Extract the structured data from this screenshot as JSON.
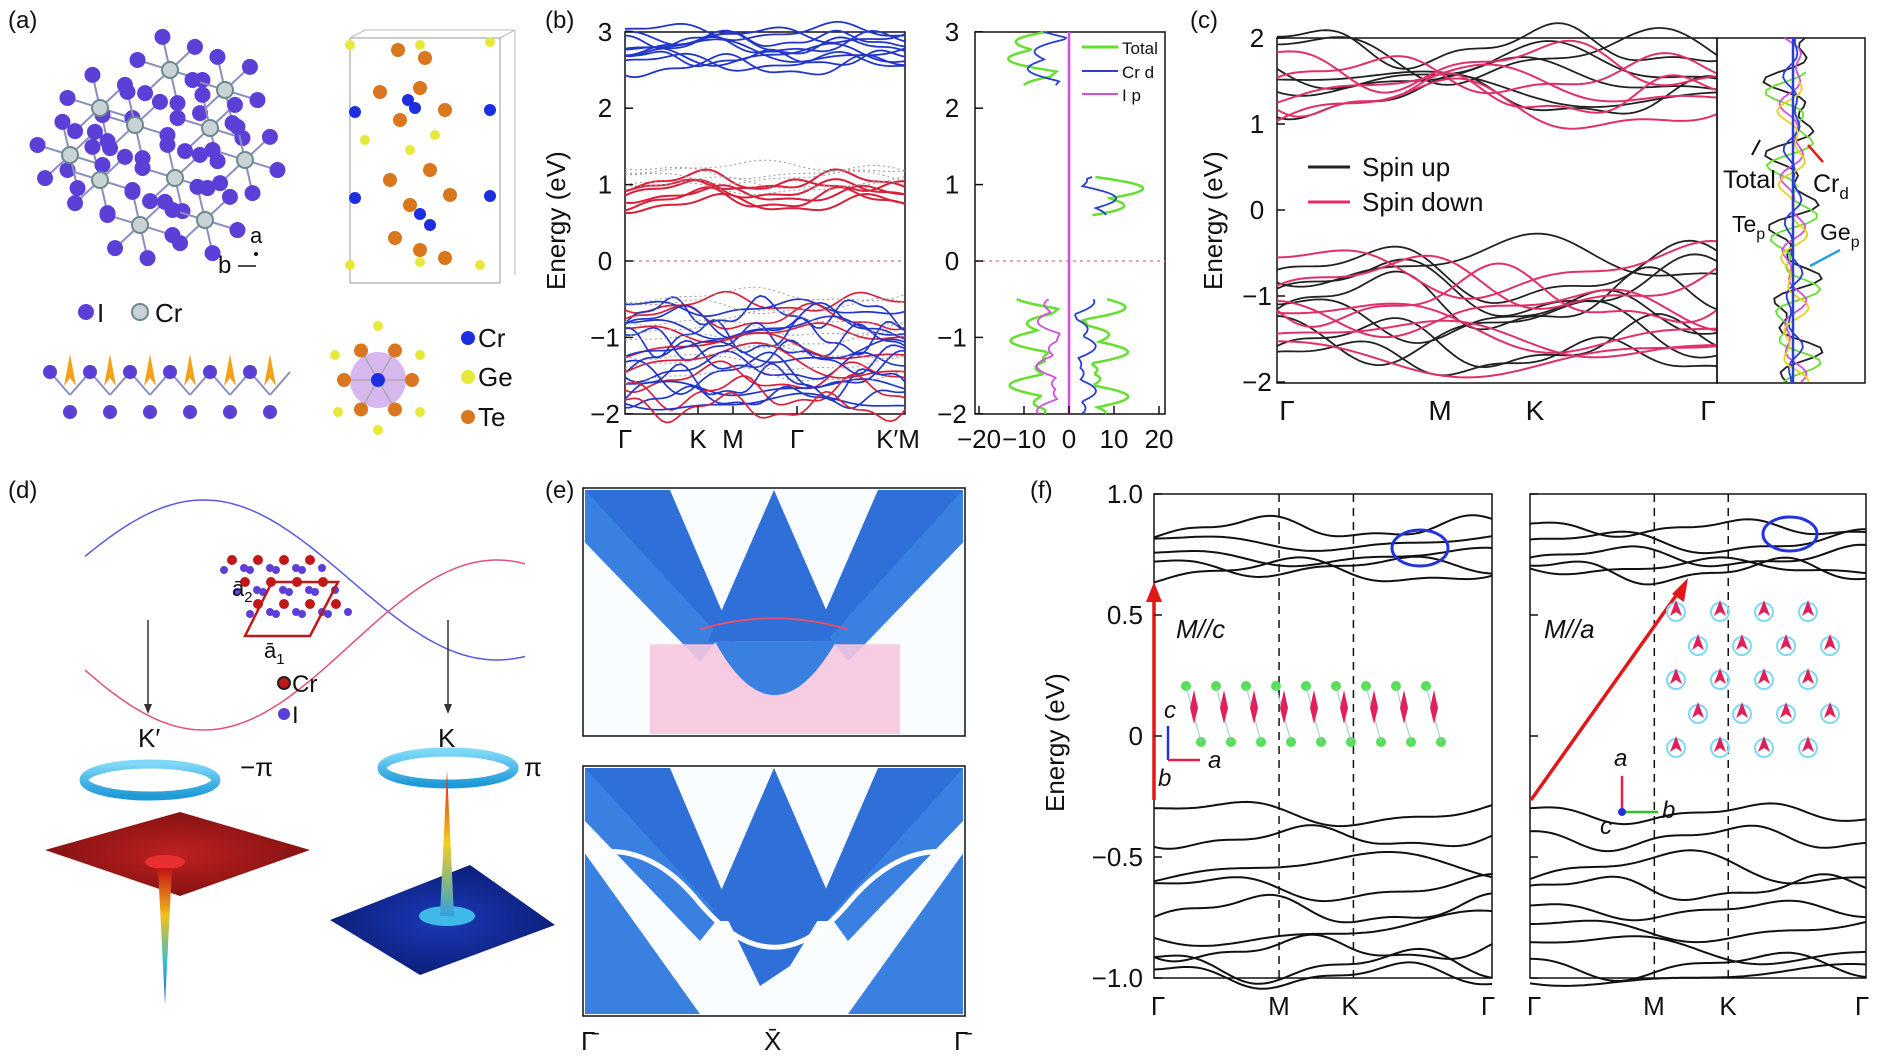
{
  "panel_labels": [
    "(a)",
    "(b)",
    "(c)",
    "(d)",
    "(e)",
    "(f)"
  ],
  "panel_a": {
    "axis_a": "a",
    "axis_b": "b",
    "legend_i": "I",
    "legend_cr": "Cr",
    "legend_cr2": "Cr",
    "legend_ge": "Ge",
    "legend_te": "Te",
    "colors": {
      "I": "#5b3fd6",
      "Cr": "#b8c4c6",
      "Ge": "#e8e83a",
      "Te": "#d9761e",
      "spin": "#f2a31b"
    }
  },
  "panel_b": {
    "ylabel": "Energy (eV)",
    "band_ticks_y": [
      "3",
      "2",
      "1",
      "0",
      "−1",
      "−2"
    ],
    "band_ticks_x": [
      "Γ",
      "K",
      "M",
      "Γ",
      "K′M"
    ],
    "dos_ticks_y": [
      "3",
      "2",
      "1",
      "0",
      "−1",
      "−2"
    ],
    "dos_ticks_x": [
      "−20",
      "−10",
      "0",
      "10",
      "20"
    ],
    "legend": [
      {
        "name": "Total",
        "color": "#66e030"
      },
      {
        "name": "Cr d",
        "color": "#2a3fd0"
      },
      {
        "name": "I p",
        "color": "#d14ee0"
      }
    ]
  },
  "panel_c": {
    "ylabel": "Energy (eV)",
    "ticks_y": [
      "2",
      "1",
      "0",
      "−1",
      "−2"
    ],
    "ticks_x": [
      "Γ",
      "M",
      "K",
      "Γ"
    ],
    "legend_up": "Spin up",
    "legend_down": "Spin down",
    "dos_total": "Total",
    "dos_cr": "Cr",
    "dos_cr_sub": "d",
    "dos_te": "Te",
    "dos_te_sub": "p",
    "dos_ge": "Ge",
    "dos_ge_sub": "p"
  },
  "panel_d": {
    "a2": "ā",
    "a2_sub": "2",
    "a1": "ā",
    "a1_sub": "1",
    "cr": "Cr",
    "i": "I",
    "kprime": "K′",
    "k": "K",
    "berry_minus": "−π",
    "berry_plus": "π"
  },
  "panel_e": {
    "ticks_x": [
      "Γ̄",
      "X̄",
      "Γ̄"
    ]
  },
  "panel_f": {
    "ylabel": "Energy (eV)",
    "ticks_y": [
      "1.0",
      "0.5",
      "0",
      "−0.5",
      "−1.0"
    ],
    "left_ticks_x": [
      "Γ",
      "M",
      "K",
      "Γ"
    ],
    "right_ticks_x": [
      "Γ",
      "M",
      "K",
      "Γ"
    ],
    "left_label": "M//c",
    "right_label": "M//a",
    "left_axes": {
      "c": "c",
      "a": "a",
      "b": "b"
    },
    "right_axes": {
      "a": "a",
      "b": "b",
      "c": "c"
    }
  }
}
